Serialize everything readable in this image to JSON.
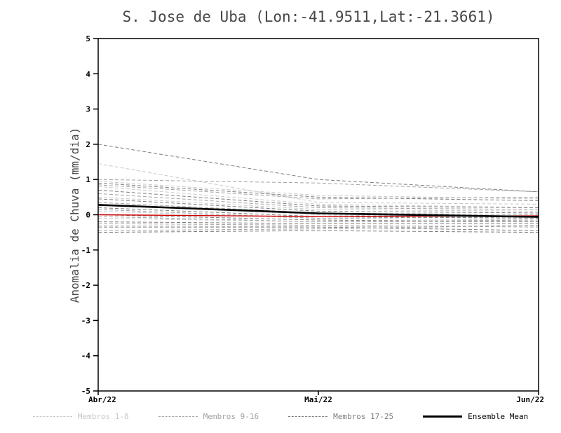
{
  "chart_data": {
    "type": "line",
    "title": "S. Jose de Uba (Lon:-41.9511,Lat:-21.3661)",
    "xlabel": "",
    "ylabel": "Anomalia de Chuva (mm/dia)",
    "x_categories": [
      "Abr/22",
      "Mai/22",
      "Jun/22"
    ],
    "ylim": [
      -5,
      5
    ],
    "yticks": [
      -5,
      -4,
      -3,
      -2,
      -1,
      0,
      1,
      2,
      3,
      4,
      5
    ],
    "grid": false,
    "legend_position": "bottom",
    "groups": [
      {
        "name": "Membros 1-8",
        "color": "#c8c8c8",
        "style": "dashed",
        "series": [
          [
            1.45,
            0.35,
            0.3
          ],
          [
            0.95,
            0.55,
            0.45
          ],
          [
            0.8,
            0.3,
            0.2
          ],
          [
            0.5,
            0.15,
            0.1
          ],
          [
            0.3,
            0.0,
            -0.1
          ],
          [
            0.1,
            -0.1,
            -0.15
          ],
          [
            -0.1,
            -0.2,
            -0.2
          ],
          [
            -0.3,
            -0.35,
            -0.3
          ]
        ]
      },
      {
        "name": "Membros 9-16",
        "color": "#a3a3a3",
        "style": "dashed",
        "series": [
          [
            1.0,
            0.9,
            0.65
          ],
          [
            0.85,
            0.45,
            0.5
          ],
          [
            0.6,
            0.2,
            0.15
          ],
          [
            0.35,
            0.05,
            0.0
          ],
          [
            0.15,
            -0.1,
            -0.05
          ],
          [
            -0.05,
            -0.2,
            -0.15
          ],
          [
            -0.25,
            -0.3,
            -0.35
          ],
          [
            -0.45,
            -0.4,
            -0.3
          ]
        ]
      },
      {
        "name": "Membros 17-25",
        "color": "#7d7d7d",
        "style": "dashed",
        "series": [
          [
            2.0,
            1.0,
            0.65
          ],
          [
            0.9,
            0.5,
            0.4
          ],
          [
            0.7,
            0.25,
            0.2
          ],
          [
            0.45,
            0.1,
            0.05
          ],
          [
            0.2,
            -0.05,
            -0.1
          ],
          [
            0.0,
            -0.15,
            -0.2
          ],
          [
            -0.2,
            -0.25,
            -0.25
          ],
          [
            -0.35,
            -0.35,
            -0.45
          ],
          [
            -0.5,
            -0.45,
            -0.5
          ]
        ]
      }
    ],
    "reference_line": {
      "name": "red-reference-line",
      "color": "#cc0000",
      "values": [
        0.0,
        -0.05,
        -0.03
      ]
    },
    "ensemble_mean": {
      "name": "Ensemble Mean",
      "color": "#000000",
      "values": [
        0.28,
        0.04,
        -0.06
      ]
    },
    "legend": [
      {
        "label": "Membros 1-8",
        "color": "#c8c8c8",
        "style": "dashed"
      },
      {
        "label": "Membros 9-16",
        "color": "#a3a3a3",
        "style": "dashed"
      },
      {
        "label": "Membros 17-25",
        "color": "#7d7d7d",
        "style": "dashed"
      },
      {
        "label": "Ensemble Mean",
        "color": "#000000",
        "style": "solid"
      }
    ]
  }
}
